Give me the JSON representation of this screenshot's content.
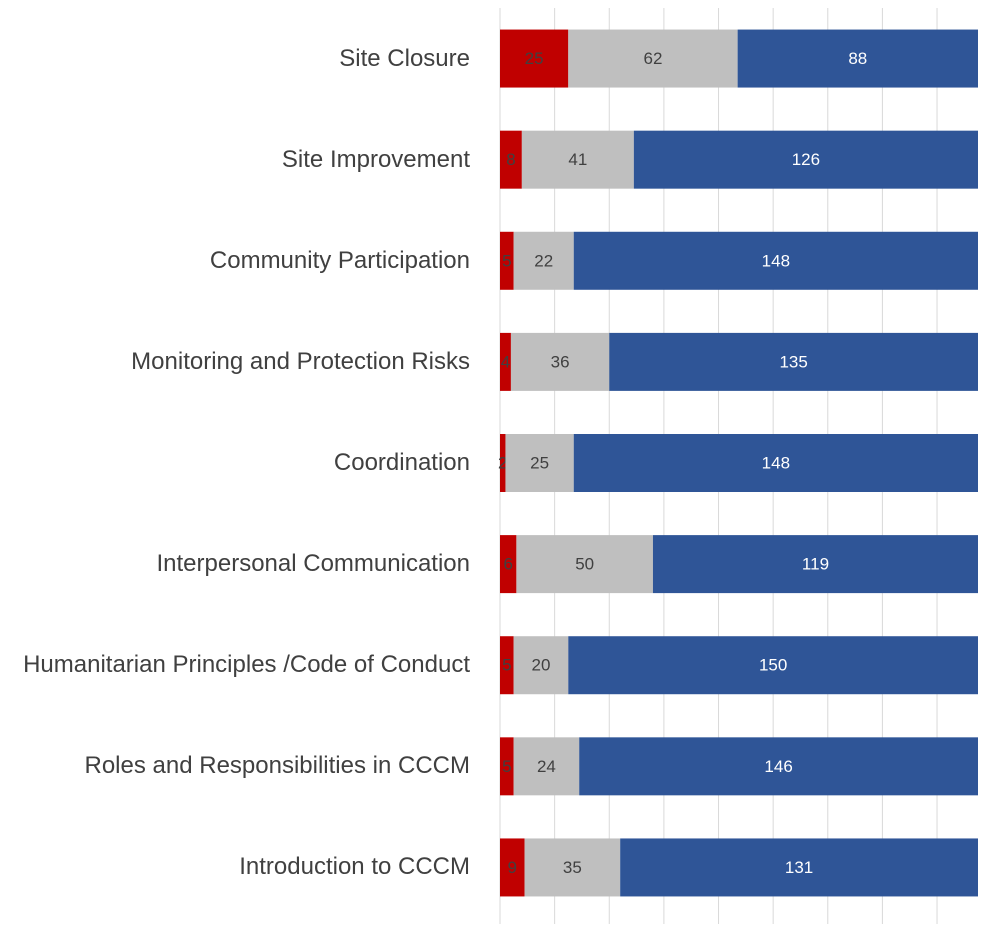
{
  "chart_data": {
    "type": "stacked_bar_horizontal",
    "categories": [
      "Site Closure",
      "Site Improvement",
      "Community Participation",
      "Monitoring and Protection Risks",
      "Coordination",
      "Interpersonal Communication",
      "Humanitarian Principles /Code of Conduct",
      "Roles and Responsibilities in CCCM",
      "Introduction to CCCM"
    ],
    "series": [
      {
        "color": "#c00000",
        "values": [
          25,
          8,
          5,
          4,
          2,
          6,
          5,
          5,
          9
        ]
      },
      {
        "color": "#bfbfbf",
        "values": [
          62,
          41,
          22,
          36,
          25,
          50,
          20,
          24,
          35
        ]
      },
      {
        "color": "#2f5597",
        "values": [
          88,
          126,
          148,
          135,
          148,
          119,
          150,
          146,
          131
        ]
      }
    ],
    "xlim": [
      0,
      175
    ],
    "xticks": [
      0,
      20,
      40,
      60,
      80,
      100,
      120,
      140,
      160
    ],
    "grid": true
  }
}
